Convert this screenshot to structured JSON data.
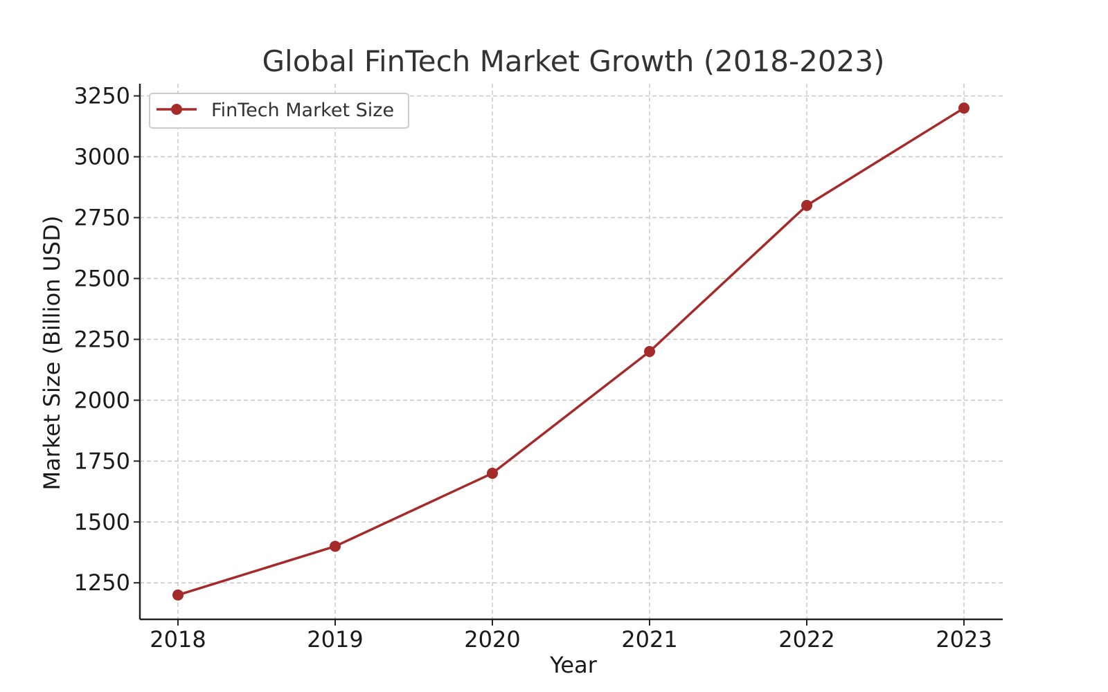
{
  "chart_data": {
    "type": "line",
    "title": "Global FinTech Market Growth (2018-2023)",
    "xlabel": "Year",
    "ylabel": "Market Size (Billion USD)",
    "categories": [
      "2018",
      "2019",
      "2020",
      "2021",
      "2022",
      "2023"
    ],
    "series": [
      {
        "name": "FinTech Market Size",
        "values": [
          1200,
          1400,
          1700,
          2200,
          2800,
          3200
        ],
        "color": "#a52a2a"
      }
    ],
    "yticks": [
      1250,
      1500,
      1750,
      2000,
      2250,
      2500,
      2750,
      3000,
      3250
    ],
    "ylim": [
      1100,
      3300
    ],
    "grid": true,
    "legend_position": "top-left"
  }
}
